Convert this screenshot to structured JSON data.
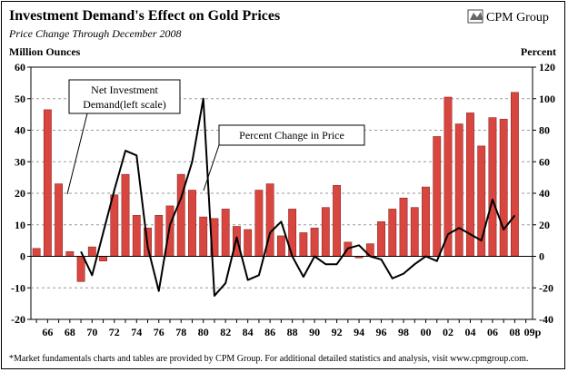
{
  "brand": {
    "name": "CPM Group",
    "logo_icon": "cpm-logo-icon"
  },
  "footnote": "*Market fundamentals charts and tables are provided by CPM Group. For additional detailed statistics and analysis, visit www.cpmgroup.com.",
  "colors": {
    "bar": "#d9453f",
    "bar_stroke": "#7a1f1c",
    "line": "#000000",
    "grid": "#9a9a9a",
    "background": "#ffffff"
  },
  "chart_data": {
    "type": "bar",
    "title": "Investment Demand's Effect on Gold Prices",
    "subtitle": "Price Change Through December 2008",
    "ylabel_left": "Million Ounces",
    "ylabel_right": "Percent",
    "ylim_left": [
      -20,
      60
    ],
    "ylim_right": [
      -40,
      120
    ],
    "yticks_left": [
      60,
      50,
      40,
      30,
      20,
      10,
      0,
      -10,
      -20
    ],
    "yticks_right": [
      120,
      100,
      80,
      60,
      40,
      20,
      0,
      -20,
      -40
    ],
    "x_tick_labels": [
      "66",
      "68",
      "70",
      "72",
      "74",
      "76",
      "78",
      "80",
      "82",
      "84",
      "86",
      "88",
      "90",
      "92",
      "94",
      "96",
      "98",
      "00",
      "02",
      "04",
      "06",
      "08",
      "09p"
    ],
    "x_tick_positions": [
      1966,
      1968,
      1970,
      1972,
      1974,
      1976,
      1978,
      1980,
      1982,
      1984,
      1986,
      1988,
      1990,
      1992,
      1994,
      1996,
      1998,
      2000,
      2002,
      2004,
      2006,
      2008,
      2009.6
    ],
    "categories": [
      1965,
      1966,
      1967,
      1968,
      1969,
      1970,
      1971,
      1972,
      1973,
      1974,
      1975,
      1976,
      1977,
      1978,
      1979,
      1980,
      1981,
      1982,
      1983,
      1984,
      1985,
      1986,
      1987,
      1988,
      1989,
      1990,
      1991,
      1992,
      1993,
      1994,
      1995,
      1996,
      1997,
      1998,
      1999,
      2000,
      2001,
      2002,
      2003,
      2004,
      2005,
      2006,
      2007,
      2008,
      2009
    ],
    "series": [
      {
        "name": "Net Investment Demand (left scale)",
        "kind": "bar",
        "axis": "left",
        "values": [
          2.5,
          46.5,
          23,
          1.5,
          -8,
          3,
          -1.5,
          19.5,
          26,
          13,
          9,
          13,
          16,
          26,
          21,
          12.5,
          12,
          15,
          9.5,
          8.5,
          21,
          23,
          6.5,
          15,
          7.5,
          9,
          15.5,
          22.5,
          4.5,
          -0.5,
          4,
          11,
          15,
          18.5,
          15.5,
          22,
          38,
          50.5,
          42,
          45.5,
          35,
          44,
          43.5,
          52,
          null
        ]
      },
      {
        "name": "Percent Change in Price",
        "kind": "line",
        "axis": "right",
        "values": [
          null,
          null,
          null,
          null,
          3,
          -12,
          15,
          42,
          67,
          64,
          6,
          -22,
          20,
          37,
          60,
          100,
          -25,
          -17,
          12,
          -15,
          -12,
          15,
          22,
          0,
          -13,
          0,
          -5,
          -5,
          5,
          7,
          0,
          -2,
          -14,
          -11,
          -5,
          0,
          -3,
          14,
          18,
          14,
          10,
          36,
          17,
          26,
          null
        ]
      }
    ],
    "callouts": [
      {
        "lines": [
          "Net Investment",
          "Demand(left scale)"
        ],
        "target": "bar-1968"
      },
      {
        "lines": [
          "Percent Change in Price"
        ],
        "target": "line-1980"
      }
    ],
    "legend": "none",
    "grid": true
  }
}
